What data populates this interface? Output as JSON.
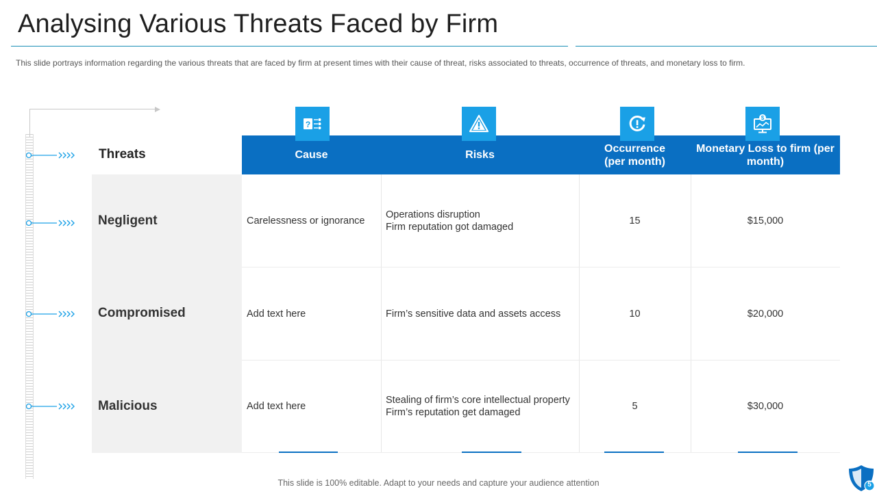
{
  "slide": {
    "title": "Analysing Various Threats Faced by Firm",
    "description": "This slide portrays information  regarding the various  threats that are faced by firm at present times with their cause of threat, risks associated to threats, occurrence of threats, and monetary loss to firm.",
    "footer": "This slide is 100% editable. Adapt to your needs and capture your audience attention",
    "page_number": "5"
  },
  "table": {
    "corner_label": "Threats",
    "headers": {
      "cause": "Cause",
      "risks": "Risks",
      "occurrence_line1": "Occurrence",
      "occurrence_line2": "(per month)",
      "loss_line1": "Monetary Loss to firm (per",
      "loss_line2": "month)"
    },
    "rows": [
      {
        "threat": "Negligent",
        "cause": "Carelessness or ignorance",
        "risks_line1": "Operations disruption",
        "risks_line2": "Firm reputation got damaged",
        "occurrence": "15",
        "loss": "$15,000"
      },
      {
        "threat": "Compromised",
        "cause": "Add text here",
        "risks_line1": "Firm’s sensitive data and assets access",
        "risks_line2": "",
        "occurrence": "10",
        "loss": "$20,000"
      },
      {
        "threat": "Malicious",
        "cause": "Add text here",
        "risks_line1": "Stealing of firm’s core intellectual property",
        "risks_line2": "Firm’s reputation get damaged",
        "occurrence": "5",
        "loss": "$30,000"
      }
    ]
  },
  "colors": {
    "header_blue": "#0a6fc2",
    "icon_blue": "#1aa0e6",
    "accent_cyan": "#1b8fb6",
    "threat_column_bg": "#f1f1f1"
  },
  "icons": {
    "cause": "question-flow-icon",
    "risks": "warning-icon",
    "occurrence": "refresh-alert-icon",
    "loss": "monitor-dollar-icon",
    "badge": "shield-icon"
  }
}
